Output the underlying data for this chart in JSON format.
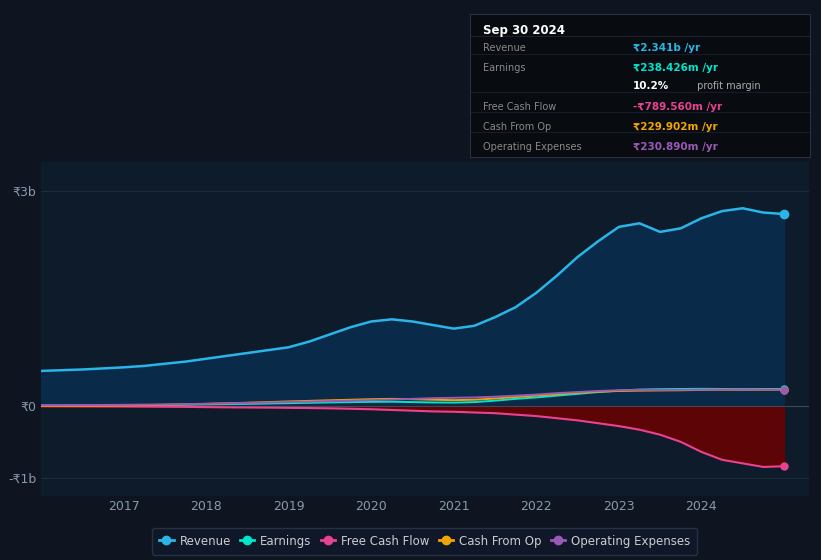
{
  "background_color": "#0e1521",
  "plot_bg_color": "#0d1b2a",
  "y_labels": [
    "₹3b",
    "₹0",
    "-₹1b"
  ],
  "y_values": [
    3000000000,
    0,
    -1000000000
  ],
  "x_ticks": [
    2017,
    2018,
    2019,
    2020,
    2021,
    2022,
    2023,
    2024
  ],
  "legend": [
    {
      "label": "Revenue",
      "color": "#29b5e8"
    },
    {
      "label": "Earnings",
      "color": "#00e5cc"
    },
    {
      "label": "Free Cash Flow",
      "color": "#e84393"
    },
    {
      "label": "Cash From Op",
      "color": "#f0a500"
    },
    {
      "label": "Operating Expenses",
      "color": "#9b59b6"
    }
  ],
  "infobox": {
    "date": "Sep 30 2024",
    "revenue_val": "₹2.341b /yr",
    "revenue_color": "#29b5e8",
    "earnings_val": "₹238.426m /yr",
    "earnings_color": "#00e5cc",
    "margin_val": "10.2%",
    "margin_suffix": " profit margin",
    "fcf_val": "-₹789.560m /yr",
    "fcf_color": "#e84393",
    "cfo_val": "₹229.902m /yr",
    "cfo_color": "#f0a500",
    "opex_val": "₹230.890m /yr",
    "opex_color": "#9b59b6"
  },
  "series": {
    "x": [
      2016.0,
      2016.25,
      2016.5,
      2016.75,
      2017.0,
      2017.25,
      2017.5,
      2017.75,
      2018.0,
      2018.25,
      2018.5,
      2018.75,
      2019.0,
      2019.25,
      2019.5,
      2019.75,
      2020.0,
      2020.25,
      2020.5,
      2020.75,
      2021.0,
      2021.25,
      2021.5,
      2021.75,
      2022.0,
      2022.25,
      2022.5,
      2022.75,
      2023.0,
      2023.25,
      2023.5,
      2023.75,
      2024.0,
      2024.25,
      2024.5,
      2024.75,
      2025.0
    ],
    "revenue_m": [
      490,
      500,
      510,
      525,
      540,
      560,
      590,
      620,
      660,
      700,
      740,
      780,
      820,
      900,
      1000,
      1100,
      1180,
      1210,
      1180,
      1130,
      1080,
      1120,
      1240,
      1380,
      1580,
      1820,
      2080,
      2300,
      2500,
      2550,
      2430,
      2480,
      2620,
      2720,
      2760,
      2700,
      2680
    ],
    "earnings_m": [
      5,
      6,
      7,
      8,
      10,
      12,
      15,
      18,
      22,
      26,
      30,
      35,
      40,
      45,
      50,
      55,
      58,
      60,
      55,
      50,
      48,
      55,
      75,
      100,
      120,
      145,
      170,
      195,
      215,
      230,
      235,
      238,
      240,
      238,
      236,
      238,
      238
    ],
    "fcf_m": [
      -2,
      -3,
      -4,
      -5,
      -6,
      -8,
      -10,
      -12,
      -15,
      -18,
      -20,
      -22,
      -25,
      -28,
      -32,
      -38,
      -45,
      -55,
      -65,
      -75,
      -80,
      -90,
      -100,
      -120,
      -140,
      -170,
      -200,
      -240,
      -280,
      -330,
      -400,
      -500,
      -640,
      -750,
      -800,
      -850,
      -840
    ],
    "cfo_m": [
      2,
      3,
      4,
      5,
      8,
      12,
      18,
      24,
      30,
      38,
      46,
      55,
      64,
      72,
      80,
      88,
      95,
      100,
      95,
      88,
      82,
      88,
      105,
      125,
      145,
      165,
      185,
      200,
      210,
      215,
      218,
      220,
      225,
      228,
      226,
      228,
      229
    ],
    "opex_m": [
      12,
      13,
      14,
      15,
      17,
      20,
      23,
      27,
      32,
      38,
      44,
      50,
      56,
      62,
      68,
      75,
      82,
      90,
      100,
      110,
      115,
      120,
      130,
      145,
      160,
      180,
      195,
      210,
      220,
      225,
      224,
      226,
      228,
      230,
      229,
      230,
      230
    ]
  }
}
